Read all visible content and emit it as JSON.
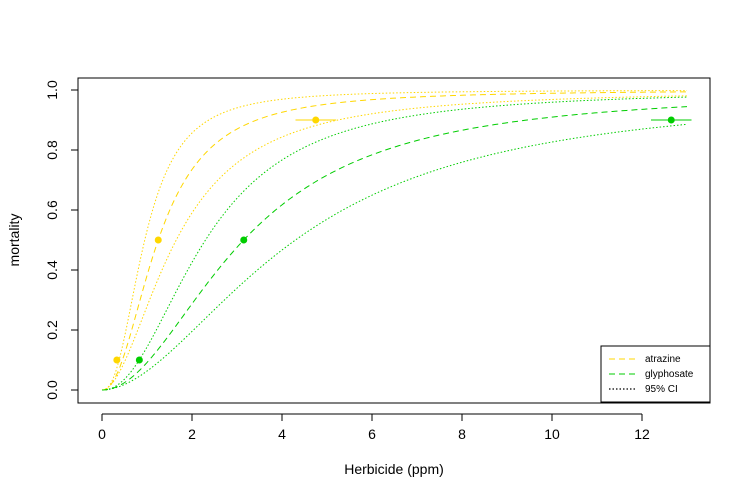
{
  "chart_data": {
    "type": "line",
    "xlabel": "Herbicide (ppm)",
    "ylabel": "mortality",
    "xlim": [
      0,
      13
    ],
    "ylim": [
      0,
      1
    ],
    "x_ticks": [
      "0",
      "2",
      "4",
      "6",
      "8",
      "10",
      "12"
    ],
    "y_ticks": [
      "0.0",
      "0.2",
      "0.4",
      "0.6",
      "0.8",
      "1.0"
    ],
    "grid": false,
    "legend_position": "bottom-right",
    "legend": [
      {
        "label": "atrazine",
        "color": "#FFD700",
        "style": "dashed"
      },
      {
        "label": "glyphosate",
        "color": "#00CD00",
        "style": "dashed"
      },
      {
        "label": "95% CI",
        "color": "#000000",
        "style": "dotted"
      }
    ],
    "series": [
      {
        "name": "atrazine",
        "color": "#FFD700",
        "fit": {
          "type": "log-logistic",
          "ed50": 1.25,
          "slope": 2.17
        },
        "ci_lower": {
          "type": "log-logistic",
          "ed50": 1.65,
          "slope": 1.9
        },
        "ci_upper": {
          "type": "log-logistic",
          "ed50": 0.95,
          "slope": 2.4
        },
        "points": [
          {
            "x": 0.33,
            "y": 0.1
          },
          {
            "x": 1.25,
            "y": 0.5
          },
          {
            "x": 4.75,
            "y": 0.9
          }
        ],
        "error_x": [
          {
            "x": 4.75,
            "y": 0.9,
            "lo": 4.3,
            "hi": 5.2
          }
        ]
      },
      {
        "name": "glyphosate",
        "color": "#00CD00",
        "fit": {
          "type": "log-logistic",
          "ed50": 3.15,
          "slope": 2.0
        },
        "ci_lower": {
          "type": "log-logistic",
          "ed50": 4.3,
          "slope": 1.85
        },
        "ci_upper": {
          "type": "log-logistic",
          "ed50": 2.3,
          "slope": 2.15
        },
        "points": [
          {
            "x": 0.83,
            "y": 0.1
          },
          {
            "x": 3.15,
            "y": 0.5
          },
          {
            "x": 12.65,
            "y": 0.9
          }
        ],
        "error_x": [
          {
            "x": 12.65,
            "y": 0.9,
            "lo": 12.2,
            "hi": 13.1
          }
        ]
      }
    ]
  }
}
